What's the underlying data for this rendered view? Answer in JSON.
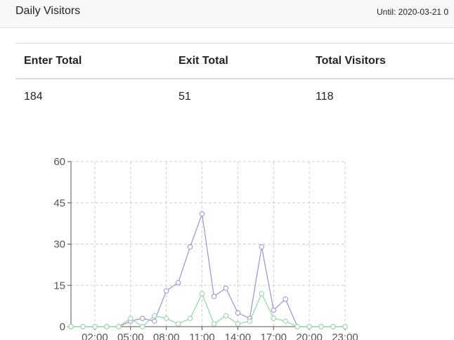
{
  "header": {
    "title": "Daily Visitors",
    "until": "Until: 2020-03-21 0"
  },
  "table": {
    "headers": [
      "Enter Total",
      "Exit Total",
      "Total Visitors"
    ],
    "values": [
      "184",
      "51",
      "118"
    ]
  },
  "chart_data": {
    "type": "line",
    "x": [
      "00:00",
      "01:00",
      "02:00",
      "03:00",
      "04:00",
      "05:00",
      "06:00",
      "07:00",
      "08:00",
      "09:00",
      "10:00",
      "11:00",
      "12:00",
      "13:00",
      "14:00",
      "15:00",
      "16:00",
      "17:00",
      "18:00",
      "19:00",
      "20:00",
      "21:00",
      "22:00",
      "23:00"
    ],
    "x_tick_labels": [
      "02:00",
      "05:00",
      "08:00",
      "11:00",
      "14:00",
      "17:00",
      "20:00",
      "23:00"
    ],
    "ylim": [
      0,
      60
    ],
    "y_ticks": [
      0,
      15,
      30,
      45,
      60
    ],
    "grid": true,
    "series": [
      {
        "color": "#9d8fd9",
        "values": [
          0,
          0,
          0,
          0,
          0,
          2,
          3,
          2,
          13,
          16,
          29,
          41,
          11,
          14,
          5,
          3,
          29,
          6,
          10,
          0,
          0,
          0,
          0,
          0
        ]
      },
      {
        "color": "#8fd6a3",
        "values": [
          0,
          0,
          0,
          0,
          0,
          3,
          0,
          4,
          3,
          1,
          3,
          12,
          1,
          4,
          1,
          2,
          12,
          3,
          2,
          0,
          0,
          0,
          0,
          0
        ]
      }
    ]
  }
}
